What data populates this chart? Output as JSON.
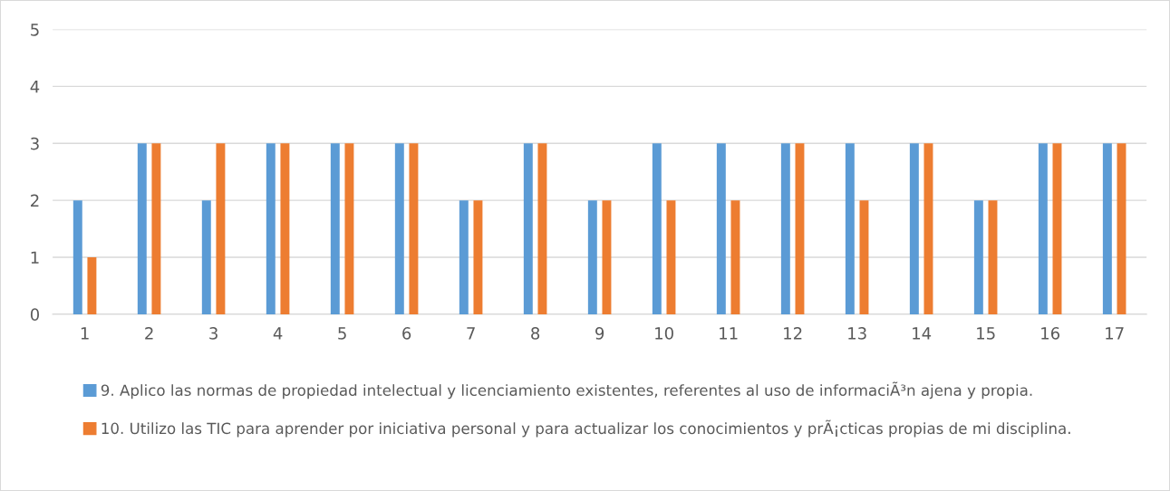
{
  "chart_data": {
    "type": "bar",
    "categories": [
      "1",
      "2",
      "3",
      "4",
      "5",
      "6",
      "7",
      "8",
      "9",
      "10",
      "11",
      "12",
      "13",
      "14",
      "15",
      "16",
      "17"
    ],
    "series": [
      {
        "name": "9. Aplico las normas de propiedad intelectual y licenciamiento existentes, referentes al uso de informaciÃ³n ajena y propia.",
        "color": "#5b9bd5",
        "values": [
          2,
          3,
          2,
          3,
          3,
          3,
          2,
          3,
          2,
          3,
          3,
          3,
          3,
          3,
          2,
          3,
          3
        ]
      },
      {
        "name": "10. Utilizo las TIC para aprender por iniciativa personal y para actualizar los conocimientos y prÃ¡cticas propias de mi disciplina.",
        "color": "#ed7d31",
        "values": [
          1,
          3,
          3,
          3,
          3,
          3,
          2,
          3,
          2,
          2,
          2,
          3,
          2,
          3,
          2,
          3,
          3
        ]
      }
    ],
    "ylim": [
      0,
      5
    ],
    "yticks": [
      0,
      1,
      2,
      3,
      4,
      5
    ],
    "grid": "y",
    "legend": "bottom"
  }
}
